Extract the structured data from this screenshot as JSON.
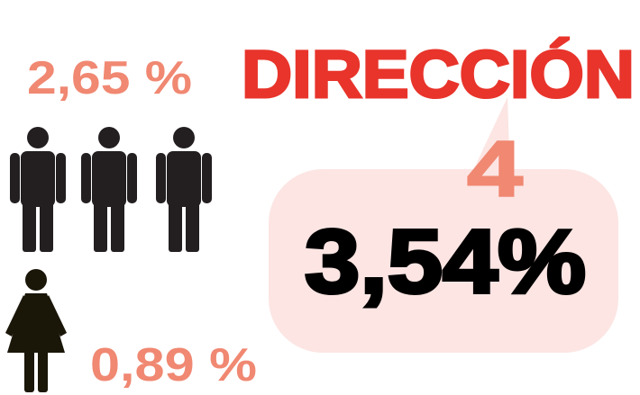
{
  "men_share": "2,65 %",
  "heading": "DIRECCIÓN",
  "direction_number": "4",
  "total_share": "3,54%",
  "women_share": "0,89 %"
}
